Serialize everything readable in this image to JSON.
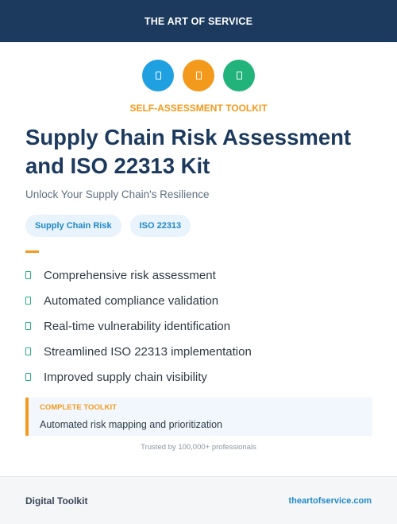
{
  "header": {
    "brand": "THE ART OF SERVICE"
  },
  "icons": [
    {
      "name": "blue-badge-icon",
      "color": "#1fa0e0"
    },
    {
      "name": "orange-badge-icon",
      "color": "#f39a1c"
    },
    {
      "name": "green-badge-icon",
      "color": "#22b37a"
    }
  ],
  "hero": {
    "kicker": "SELF-ASSESSMENT TOOLKIT",
    "title": "Supply Chain Risk Assessment and ISO 22313 Kit",
    "subtitle": "Unlock Your Supply Chain's Resilience"
  },
  "tags": [
    "Supply Chain Risk",
    "ISO 22313"
  ],
  "features": [
    "Comprehensive risk assessment",
    "Automated compliance validation",
    "Real-time vulnerability identification",
    "Streamlined ISO 22313 implementation",
    "Improved supply chain visibility"
  ],
  "callout": {
    "label": "COMPLETE TOOLKIT",
    "text": "Automated risk mapping and prioritization"
  },
  "trusted": "Trusted by 100,000+ professionals",
  "footer": {
    "left": "Digital Toolkit",
    "right": "theartofservice.com"
  },
  "colors": {
    "navy": "#1c3a5e",
    "accent": "#f39a1c",
    "blue": "#1fa0e0",
    "green": "#22b37a"
  }
}
